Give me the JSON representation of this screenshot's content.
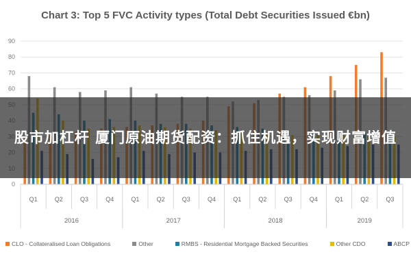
{
  "chart_data": {
    "type": "bar",
    "title": "Chart 3: Top 5 FVC Activity types (Total Debt Securities Issued €bn)",
    "xlabel": "",
    "ylabel": "",
    "ylim": [
      0,
      90
    ],
    "yticks": [
      0,
      10,
      20,
      30,
      40,
      50,
      60,
      70,
      80,
      90
    ],
    "grid": true,
    "legend_position": "bottom",
    "categories": [
      "Q1",
      "Q2",
      "Q3",
      "Q4",
      "Q1",
      "Q2",
      "Q3",
      "Q4",
      "Q1",
      "Q2",
      "Q3",
      "Q4",
      "Q1",
      "Q2",
      "Q3"
    ],
    "groups": [
      {
        "label": "2016",
        "quarters": 4
      },
      {
        "label": "2017",
        "quarters": 4
      },
      {
        "label": "2018",
        "quarters": 4
      },
      {
        "label": "2019",
        "quarters": 3
      }
    ],
    "series": [
      {
        "name": "CLO - Collateralised Loan Obligations",
        "color": "#ed7d31",
        "values": [
          30,
          31,
          33,
          35,
          36,
          37,
          38,
          40,
          49,
          51,
          57,
          61,
          68,
          75,
          83
        ]
      },
      {
        "name": "Other",
        "color": "#8c8c8c",
        "values": [
          68,
          61,
          58,
          59,
          61,
          57,
          55,
          55,
          52,
          53,
          55,
          56,
          59,
          66,
          67
        ]
      },
      {
        "name": "RMBS - Residential Mortgage Backed Securities",
        "color": "#1f7fa3",
        "values": [
          45,
          44,
          40,
          41,
          40,
          38,
          38,
          37,
          36,
          35,
          34,
          33,
          33,
          32,
          32
        ]
      },
      {
        "name": "Other CDO",
        "color": "#e6b800",
        "values": [
          54,
          40,
          35,
          36,
          37,
          36,
          35,
          34,
          33,
          32,
          31,
          31,
          31,
          30,
          30
        ]
      },
      {
        "name": "ABCP",
        "color": "#2e4d8a",
        "values": [
          21,
          19,
          16,
          17,
          21,
          19,
          20,
          20,
          21,
          22,
          22,
          23,
          24,
          25,
          25
        ]
      }
    ]
  },
  "banner": {
    "text": "股市加杠杆 厦门原油期货配资：抓住机遇，实现财富增值"
  }
}
